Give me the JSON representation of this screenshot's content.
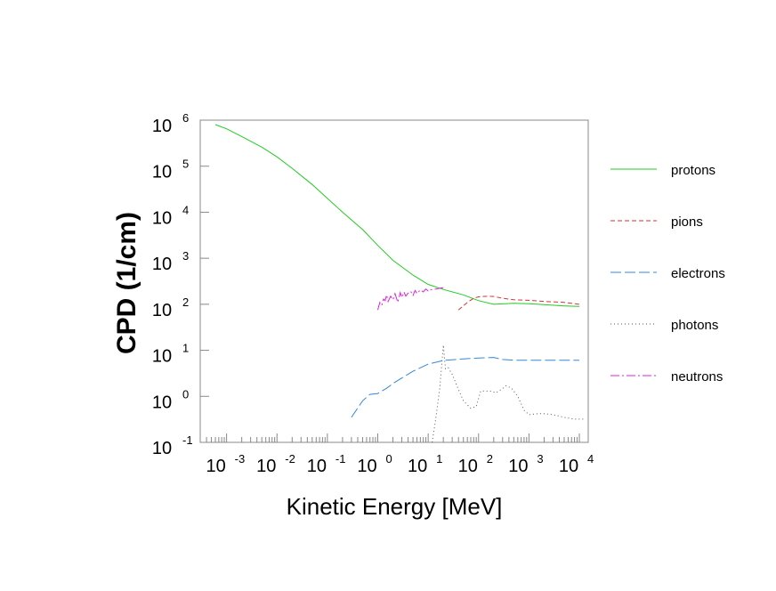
{
  "chart_data": {
    "type": "line",
    "xlabel": "Kinetic Energy [MeV]",
    "ylabel": "CPD (1/cm)",
    "xscale": "log",
    "yscale": "log",
    "xlim": [
      0.0003,
      15000
    ],
    "ylim": [
      0.1,
      1000000
    ],
    "x_ticks": [
      {
        "base": "10",
        "exp": "-3"
      },
      {
        "base": "10",
        "exp": "-2"
      },
      {
        "base": "10",
        "exp": "-1"
      },
      {
        "base": "10",
        "exp": "0"
      },
      {
        "base": "10",
        "exp": "1"
      },
      {
        "base": "10",
        "exp": "2"
      },
      {
        "base": "10",
        "exp": "3"
      },
      {
        "base": "10",
        "exp": "4"
      }
    ],
    "y_ticks": [
      {
        "base": "10",
        "exp": "-1"
      },
      {
        "base": "10",
        "exp": "0"
      },
      {
        "base": "10",
        "exp": "1"
      },
      {
        "base": "10",
        "exp": "2"
      },
      {
        "base": "10",
        "exp": "3"
      },
      {
        "base": "10",
        "exp": "4"
      },
      {
        "base": "10",
        "exp": "5"
      },
      {
        "base": "10",
        "exp": "6"
      }
    ],
    "legend_position": "right",
    "grid": false,
    "series": [
      {
        "name": "protons",
        "color": "#22cc22",
        "dash": "solid",
        "x": [
          0.0006,
          0.001,
          0.002,
          0.005,
          0.01,
          0.02,
          0.05,
          0.1,
          0.2,
          0.5,
          1,
          2,
          5,
          10,
          20,
          50,
          100,
          200,
          500,
          1000,
          2000,
          5000,
          10000
        ],
        "y": [
          800000,
          650000,
          440000,
          260000,
          160000,
          90000,
          40000,
          20000,
          10000,
          4200,
          1900,
          900,
          430,
          270,
          210,
          160,
          120,
          100,
          105,
          103,
          98,
          92,
          90
        ]
      },
      {
        "name": "pions",
        "color": "#dd3333",
        "dash": "dashed",
        "x": [
          40,
          60,
          80,
          100,
          150,
          200,
          300,
          500,
          1000,
          2000,
          5000,
          10000
        ],
        "y": [
          75,
          110,
          135,
          145,
          150,
          148,
          135,
          125,
          122,
          115,
          110,
          100
        ]
      },
      {
        "name": "electrons",
        "color": "#3388dd",
        "dash": "long-dashed",
        "x": [
          0.3,
          0.5,
          0.7,
          1,
          1.5,
          2,
          3,
          5,
          10,
          20,
          50,
          100,
          200,
          300,
          500,
          1000,
          2000,
          5000,
          10000
        ],
        "y": [
          0.35,
          0.8,
          1.1,
          1.15,
          1.5,
          1.9,
          2.5,
          3.5,
          5,
          6,
          6.5,
          6.8,
          7,
          6.3,
          6.1,
          6.1,
          6.1,
          6.1,
          6.1
        ]
      },
      {
        "name": "photons",
        "color": "#555555",
        "dash": "dotted",
        "x": [
          12,
          14,
          17,
          20,
          22,
          25,
          30,
          40,
          50,
          70,
          90,
          110,
          140,
          170,
          220,
          280,
          350,
          450,
          600,
          800,
          1000,
          1500,
          2000,
          3000,
          5000,
          8000,
          12000
        ],
        "y": [
          0.1,
          0.3,
          1.5,
          13,
          4,
          4.2,
          3,
          1.4,
          0.8,
          0.55,
          0.6,
          1.3,
          1.3,
          1.3,
          1.2,
          1.4,
          1.7,
          1.5,
          1.0,
          0.5,
          0.4,
          0.42,
          0.42,
          0.4,
          0.35,
          0.32,
          0.32
        ]
      },
      {
        "name": "neutrons",
        "color": "#dd22dd",
        "dash": "dash-dot",
        "x": [
          1.0,
          1.1,
          1.2,
          1.3,
          1.4,
          1.5,
          1.6,
          1.8,
          2.0,
          2.2,
          2.5,
          2.8,
          3.0,
          3.3,
          3.6,
          4.0,
          4.5,
          5.0,
          5.5,
          6.0,
          7.0,
          8.0,
          9.0,
          10,
          11,
          12,
          14,
          16,
          18,
          20
        ],
        "y": [
          75,
          110,
          95,
          130,
          120,
          160,
          115,
          150,
          125,
          170,
          110,
          180,
          140,
          185,
          150,
          175,
          190,
          155,
          200,
          170,
          205,
          185,
          215,
          195,
          210,
          205,
          215,
          220,
          225,
          230
        ]
      }
    ]
  }
}
